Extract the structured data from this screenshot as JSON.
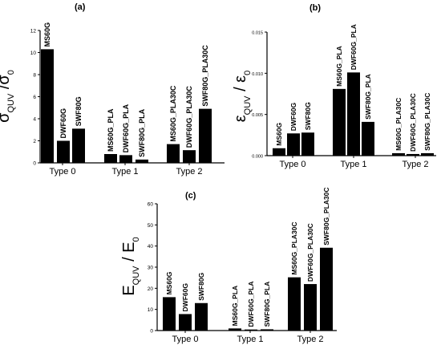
{
  "chart_data": [
    {
      "type": "bar",
      "panel_label": "(a)",
      "ylabel_main": "σ",
      "ylabel_sub": "QUV",
      "ylabel_sep": " /",
      "ylabel_den_main": "σ",
      "ylabel_den_sub": "0",
      "ylim": [
        0,
        12
      ],
      "yticks": [
        "0",
        "2",
        "4",
        "6",
        "8",
        "10",
        "12"
      ],
      "groups": [
        "Type 0",
        "Type 1",
        "Type 2"
      ],
      "categories": [
        "MS60G",
        "DWF60G",
        "SWF80G",
        "MS60G_PLA",
        "DWF60G_PLA",
        "SWF80G_PLA",
        "MS60G_PLA30C",
        "DWF60G_PLA30C",
        "SWF80G_PLA30C"
      ],
      "values": [
        10.3,
        2.0,
        3.1,
        0.8,
        0.7,
        0.3,
        1.7,
        1.15,
        4.9
      ]
    },
    {
      "type": "bar",
      "panel_label": "(b)",
      "ylabel_main": "ε",
      "ylabel_sub": "QUV",
      "ylabel_sep": " / ",
      "ylabel_den_main": "ε",
      "ylabel_den_sub": "0",
      "ylim": [
        0,
        0.015
      ],
      "yticks": [
        "0.000",
        "0.005",
        "0.010",
        "0.015"
      ],
      "groups": [
        "Type 0",
        "Type 1",
        "Type 2"
      ],
      "categories": [
        "MS60G",
        "DWF60G",
        "SWF80G",
        "MS60G_PLA",
        "DWF60G_PLA",
        "SWF80G_PLA",
        "MS60G_PLA30C",
        "DWF60G_PLA30C",
        "SWF80G_PLA30C"
      ],
      "values": [
        0.0009,
        0.0027,
        0.0028,
        0.0081,
        0.0101,
        0.0041,
        0.0003,
        0.0002,
        0.0003
      ]
    },
    {
      "type": "bar",
      "panel_label": "(c)",
      "ylabel_main": "E",
      "ylabel_sub": "QUV",
      "ylabel_sep": " / ",
      "ylabel_den_main": "E",
      "ylabel_den_sub": "0",
      "ylim": [
        0,
        60
      ],
      "yticks": [
        "0",
        "10",
        "20",
        "30",
        "40",
        "50",
        "60"
      ],
      "groups": [
        "Type 0",
        "Type 1",
        "Type 2"
      ],
      "categories": [
        "MS60G",
        "DWF60G",
        "SWF80G",
        "MS60G_PLA",
        "DWF60G_PLA",
        "SWF80G_PLA",
        "MS60G_PLA30C",
        "DWF60G_PLA30C",
        "SWF80G_PLA30C"
      ],
      "values": [
        15.8,
        7.8,
        13.0,
        1.0,
        0.5,
        0.6,
        25.2,
        22.0,
        39.2
      ]
    }
  ]
}
